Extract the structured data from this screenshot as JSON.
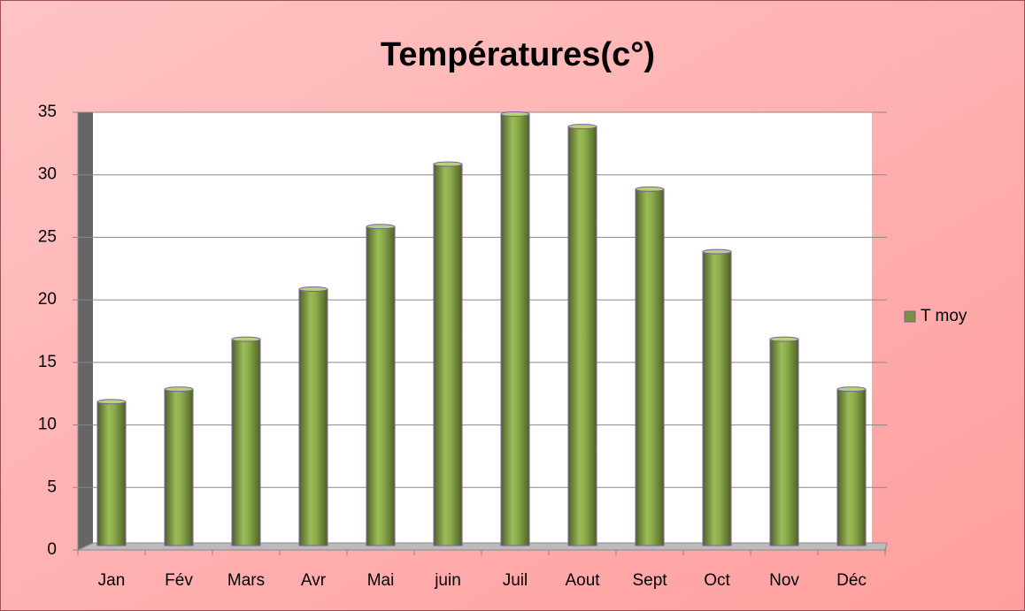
{
  "chart_data": {
    "type": "bar",
    "title": "Températures(c°)",
    "categories": [
      "Jan",
      "Fév",
      "Mars",
      "Avr",
      "Mai",
      "juin",
      "Juil",
      "Aout",
      "Sept",
      "Oct",
      "Nov",
      "Déc"
    ],
    "series": [
      {
        "name": "T moy",
        "color": "#77933c",
        "values": [
          12,
          13,
          17,
          21,
          26,
          31,
          35,
          34,
          29,
          24,
          17,
          13
        ]
      }
    ],
    "ylim": [
      0,
      35
    ],
    "yticks": [
      0,
      5,
      10,
      15,
      20,
      25,
      30,
      35
    ],
    "grid": true,
    "legend": "right"
  }
}
